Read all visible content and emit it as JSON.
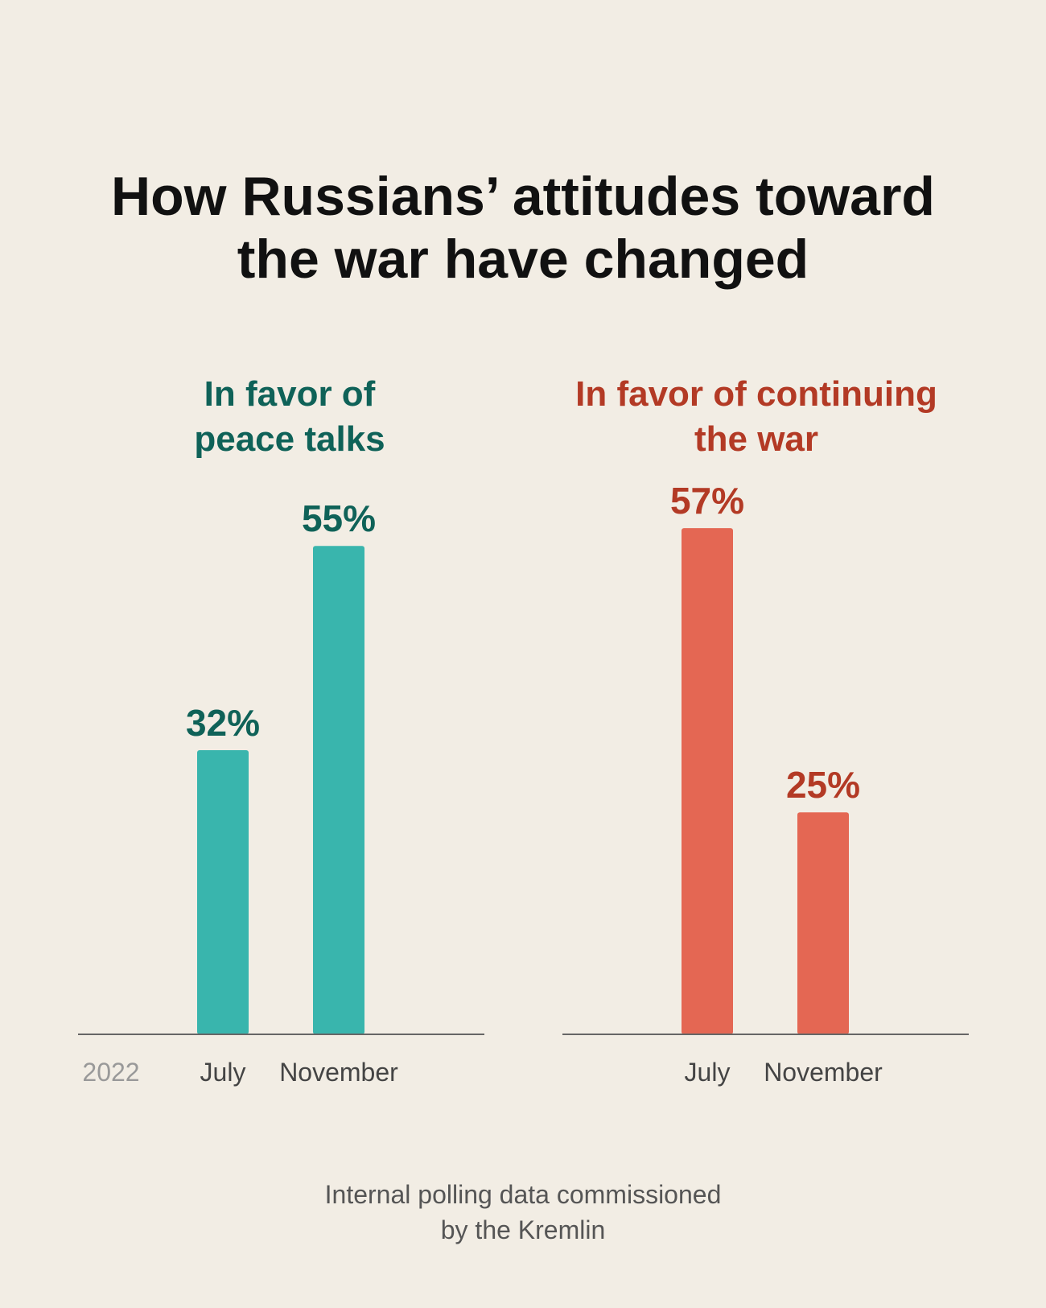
{
  "title_lines": [
    "How Russians’ attitudes toward",
    "the war have changed"
  ],
  "colors": {
    "background": "#f2ede4",
    "peace_label": "#0f6258",
    "peace_bar": "#39b5ad",
    "war_label": "#b33a25",
    "war_bar": "#e46753",
    "axis": "#666666",
    "tick": "#444444",
    "year": "#999999"
  },
  "chart_data": [
    {
      "type": "bar",
      "title_lines": [
        "In favor of",
        "peace talks"
      ],
      "year_label": "2022",
      "categories": [
        "July",
        "November"
      ],
      "values": [
        32,
        55
      ],
      "data_labels": [
        "32%",
        "55%"
      ],
      "ylim": [
        0,
        62
      ],
      "grid": false
    },
    {
      "type": "bar",
      "title_lines": [
        "In favor of continuing",
        "the war"
      ],
      "year_label": "",
      "categories": [
        "July",
        "November"
      ],
      "values": [
        57,
        25
      ],
      "data_labels": [
        "57%",
        "25%"
      ],
      "ylim": [
        0,
        62
      ],
      "grid": false
    }
  ],
  "source_lines": [
    "Internal polling data commissioned",
    "by the Kremlin"
  ]
}
